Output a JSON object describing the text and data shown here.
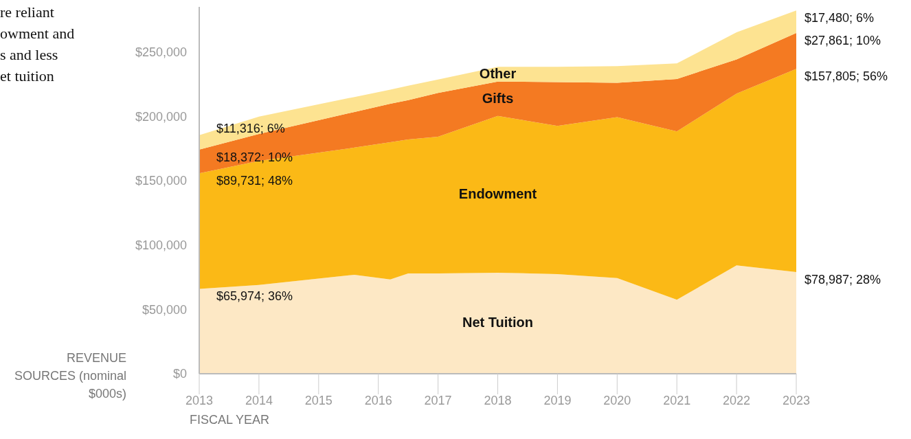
{
  "chart_data": {
    "type": "area",
    "stacked": true,
    "x": [
      2013,
      2014,
      2015.6,
      2016.2,
      2016.5,
      2017,
      2018,
      2019,
      2020,
      2021,
      2022,
      2023
    ],
    "xlim": [
      2013,
      2023
    ],
    "xticks": [
      2013,
      2014,
      2015,
      2016,
      2017,
      2018,
      2019,
      2020,
      2021,
      2022,
      2023
    ],
    "ylim": [
      0,
      285000
    ],
    "yticks": [
      {
        "value": 0,
        "label": "$0"
      },
      {
        "value": 50000,
        "label": "$50,000"
      },
      {
        "value": 100000,
        "label": "$100,000"
      },
      {
        "value": 150000,
        "label": "$150,000"
      },
      {
        "value": 200000,
        "label": "$200,000"
      },
      {
        "value": 250000,
        "label": "$250,000"
      }
    ],
    "xlabel": "FISCAL YEAR",
    "ylabel": "REVENUE SOURCES (nominal $000s)",
    "annotations": [
      "re reliant\nowment and\ns and less\net tuition"
    ],
    "grid": false,
    "series": [
      {
        "name": "Net Tuition",
        "color": "#fde8c5",
        "values": [
          65974,
          69000,
          76900,
          73200,
          77900,
          77900,
          78500,
          77400,
          74300,
          57500,
          84200,
          78987
        ],
        "value_labels": [
          "$65,974; 36%",
          null,
          null,
          null,
          null,
          null,
          null,
          null,
          null,
          null,
          null,
          "$78,987; 28%"
        ]
      },
      {
        "name": "Endowment",
        "color": "#fbb916",
        "values": [
          89731,
          96300,
          98800,
          106700,
          104100,
          106200,
          121800,
          115100,
          125000,
          130800,
          133400,
          157805
        ],
        "value_labels": [
          "$89,731; 48%",
          null,
          null,
          null,
          null,
          null,
          null,
          null,
          null,
          null,
          null,
          "$157,805; 56%"
        ]
      },
      {
        "name": "Gifts",
        "color": "#f47a22",
        "values": [
          18372,
          20900,
          27700,
          29800,
          30600,
          34000,
          26700,
          34000,
          26700,
          40700,
          26600,
          27861
        ],
        "value_labels": [
          "$18,372; 10%",
          null,
          null,
          null,
          null,
          null,
          null,
          null,
          null,
          null,
          null,
          "$27,861; 10%"
        ]
      },
      {
        "name": "Other",
        "color": "#fde391",
        "values": [
          11316,
          13600,
          11600,
          11000,
          11200,
          10500,
          11500,
          12000,
          13000,
          12100,
          21000,
          17480
        ],
        "value_labels": [
          "$11,316; 6%",
          null,
          null,
          null,
          null,
          null,
          null,
          null,
          null,
          null,
          null,
          "$17,480; 6%"
        ]
      }
    ]
  }
}
